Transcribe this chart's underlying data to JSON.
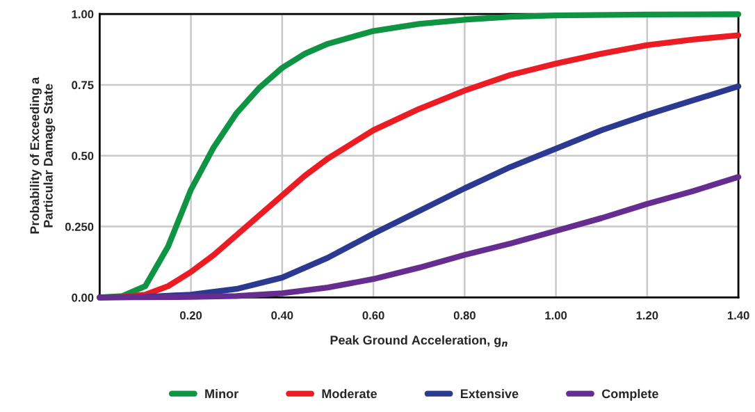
{
  "chart_data": {
    "type": "line",
    "xlabel": "Peak Ground Acceleration, g$_{n}$",
    "ylabel": "Probability of Exceeding a\nParticular Damage State",
    "xlim": [
      0,
      1.4
    ],
    "xticks": [
      {
        "value": 0,
        "label": null
      },
      {
        "value": 0.2,
        "label": "0.20"
      },
      {
        "value": 0.4,
        "label": "0.40"
      },
      {
        "value": 0.6,
        "label": "0.60"
      },
      {
        "value": 0.8,
        "label": "0.80"
      },
      {
        "value": 1.0,
        "label": "1.00"
      },
      {
        "value": 1.2,
        "label": "1.20"
      },
      {
        "value": 1.4,
        "label": "1.40"
      }
    ],
    "ylim": [
      0,
      1
    ],
    "yticks": [
      {
        "value": 0,
        "label": "0.00"
      },
      {
        "value": 0.25,
        "label": "0.250"
      },
      {
        "value": 0.5,
        "label": "0.50"
      },
      {
        "value": 0.75,
        "label": "0.75"
      },
      {
        "value": 1.0,
        "label": "1.00"
      }
    ],
    "grid": true,
    "legend": "bottom",
    "marker": "none",
    "line_style": "solid",
    "series": [
      {
        "name": "Minor",
        "color": "#0f9444",
        "x": [
          0,
          0.05,
          0.1,
          0.15,
          0.2,
          0.25,
          0.3,
          0.35,
          0.4,
          0.45,
          0.5,
          0.6,
          0.7,
          0.8,
          0.9,
          1.0,
          1.2,
          1.4
        ],
        "values": [
          0,
          0.005,
          0.04,
          0.18,
          0.38,
          0.53,
          0.65,
          0.74,
          0.81,
          0.86,
          0.895,
          0.94,
          0.965,
          0.98,
          0.99,
          0.995,
          0.998,
          0.999
        ]
      },
      {
        "name": "Moderate",
        "color": "#ec1c24",
        "x": [
          0,
          0.05,
          0.1,
          0.15,
          0.2,
          0.25,
          0.3,
          0.35,
          0.4,
          0.45,
          0.5,
          0.55,
          0.6,
          0.7,
          0.8,
          0.9,
          1.0,
          1.1,
          1.2,
          1.3,
          1.4
        ],
        "values": [
          0,
          0.002,
          0.01,
          0.04,
          0.09,
          0.15,
          0.22,
          0.29,
          0.36,
          0.43,
          0.49,
          0.54,
          0.59,
          0.665,
          0.73,
          0.785,
          0.825,
          0.86,
          0.89,
          0.91,
          0.925
        ]
      },
      {
        "name": "Extensive",
        "color": "#2b3990",
        "x": [
          0,
          0.1,
          0.2,
          0.3,
          0.4,
          0.5,
          0.6,
          0.7,
          0.8,
          0.9,
          1.0,
          1.1,
          1.2,
          1.3,
          1.4
        ],
        "values": [
          0,
          0.002,
          0.01,
          0.03,
          0.07,
          0.14,
          0.225,
          0.305,
          0.385,
          0.46,
          0.525,
          0.59,
          0.645,
          0.695,
          0.745
        ]
      },
      {
        "name": "Complete",
        "color": "#662d91",
        "x": [
          0,
          0.2,
          0.3,
          0.4,
          0.5,
          0.6,
          0.7,
          0.8,
          0.9,
          1.0,
          1.1,
          1.2,
          1.3,
          1.4
        ],
        "values": [
          0,
          0.002,
          0.005,
          0.015,
          0.035,
          0.065,
          0.105,
          0.15,
          0.19,
          0.235,
          0.28,
          0.33,
          0.375,
          0.425
        ]
      }
    ]
  }
}
